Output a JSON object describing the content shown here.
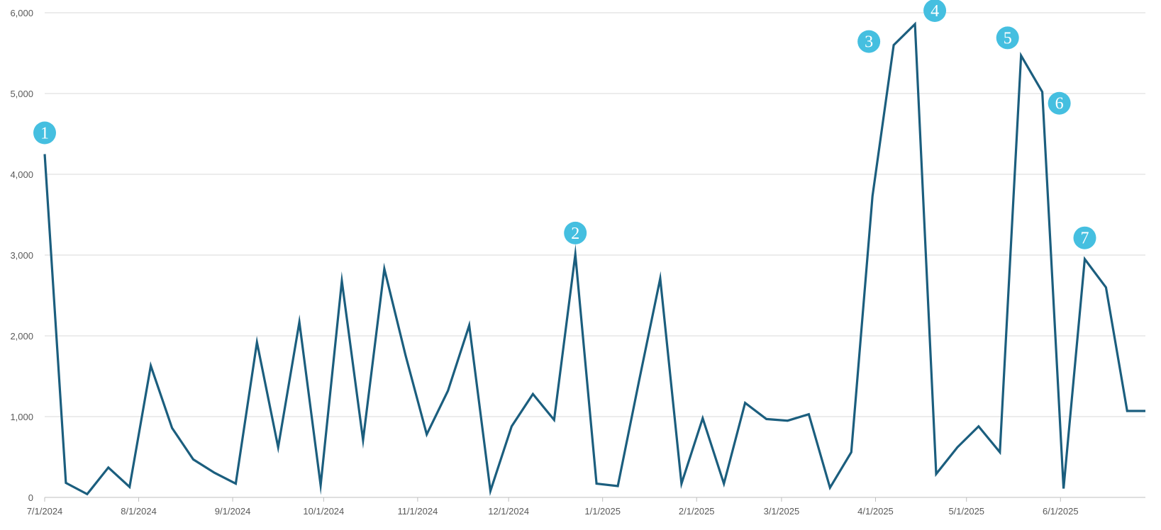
{
  "chart_data": {
    "type": "line",
    "title": "",
    "xlabel": "",
    "ylabel": "",
    "ylim": [
      0,
      6000
    ],
    "xlim": [
      "2024-07-01",
      "2025-06-29"
    ],
    "grid": true,
    "legend": "none",
    "y_ticks": [
      {
        "value": 0,
        "label": "0"
      },
      {
        "value": 1000,
        "label": "1,000"
      },
      {
        "value": 2000,
        "label": "2,000"
      },
      {
        "value": 3000,
        "label": "3,000"
      },
      {
        "value": 4000,
        "label": "4,000"
      },
      {
        "value": 5000,
        "label": "5,000"
      },
      {
        "value": 6000,
        "label": "6,000"
      }
    ],
    "x_ticks": [
      {
        "date": "2024-07-01",
        "label": "7/1/2024"
      },
      {
        "date": "2024-08-01",
        "label": "8/1/2024"
      },
      {
        "date": "2024-09-01",
        "label": "9/1/2024"
      },
      {
        "date": "2024-10-01",
        "label": "10/1/2024"
      },
      {
        "date": "2024-11-01",
        "label": "11/1/2024"
      },
      {
        "date": "2024-12-01",
        "label": "12/1/2024"
      },
      {
        "date": "2025-01-01",
        "label": "1/1/2025"
      },
      {
        "date": "2025-02-01",
        "label": "2/1/2025"
      },
      {
        "date": "2025-03-01",
        "label": "3/1/2025"
      },
      {
        "date": "2025-04-01",
        "label": "4/1/2025"
      },
      {
        "date": "2025-05-01",
        "label": "5/1/2025"
      },
      {
        "date": "2025-06-01",
        "label": "6/1/2025"
      }
    ],
    "series": [
      {
        "color": "#1b5e7e",
        "x": [
          "2024-07-01",
          "2024-07-08",
          "2024-07-15",
          "2024-07-22",
          "2024-07-29",
          "2024-08-05",
          "2024-08-12",
          "2024-08-19",
          "2024-08-26",
          "2024-09-02",
          "2024-09-09",
          "2024-09-16",
          "2024-09-23",
          "2024-09-30",
          "2024-10-07",
          "2024-10-14",
          "2024-10-21",
          "2024-10-28",
          "2024-11-04",
          "2024-11-11",
          "2024-11-18",
          "2024-11-25",
          "2024-12-02",
          "2024-12-09",
          "2024-12-16",
          "2024-12-23",
          "2024-12-30",
          "2025-01-06",
          "2025-01-13",
          "2025-01-20",
          "2025-01-27",
          "2025-02-03",
          "2025-02-10",
          "2025-02-17",
          "2025-02-24",
          "2025-03-03",
          "2025-03-10",
          "2025-03-17",
          "2025-03-24",
          "2025-03-31",
          "2025-04-07",
          "2025-04-14",
          "2025-04-21",
          "2025-04-28",
          "2025-05-05",
          "2025-05-12",
          "2025-05-19",
          "2025-05-26",
          "2025-06-02",
          "2025-06-09",
          "2025-06-16",
          "2025-06-23",
          "2025-06-29"
        ],
        "values": [
          4250,
          180,
          40,
          370,
          130,
          1630,
          860,
          470,
          305,
          170,
          1920,
          620,
          2170,
          150,
          2680,
          710,
          2830,
          1760,
          780,
          1320,
          2130,
          80,
          880,
          1280,
          960,
          3010,
          170,
          140,
          1440,
          2710,
          170,
          980,
          170,
          1170,
          970,
          950,
          1030,
          120,
          560,
          3730,
          5600,
          5860,
          290,
          620,
          880,
          560,
          5470,
          5020,
          110,
          2950,
          2600,
          1070,
          1070
        ]
      }
    ],
    "annotations": [
      {
        "label": "1",
        "x": "2024-07-01",
        "y": 4250
      },
      {
        "label": "2",
        "x": "2024-12-23",
        "y": 3010
      },
      {
        "label": "3",
        "x": "2025-04-07",
        "y": 5600
      },
      {
        "label": "4",
        "x": "2025-04-14",
        "y": 5860
      },
      {
        "label": "5",
        "x": "2025-05-19",
        "y": 5470
      },
      {
        "label": "6",
        "x": "2025-05-26",
        "y": 5020
      },
      {
        "label": "7",
        "x": "2025-06-09",
        "y": 2950
      }
    ],
    "colors": {
      "line": "#1b5e7e",
      "marker": "#45bfe0",
      "marker_text": "#ffffff",
      "grid": "#d9d9d9",
      "axis": "#bfbfbf",
      "tick_text": "#595959"
    }
  }
}
